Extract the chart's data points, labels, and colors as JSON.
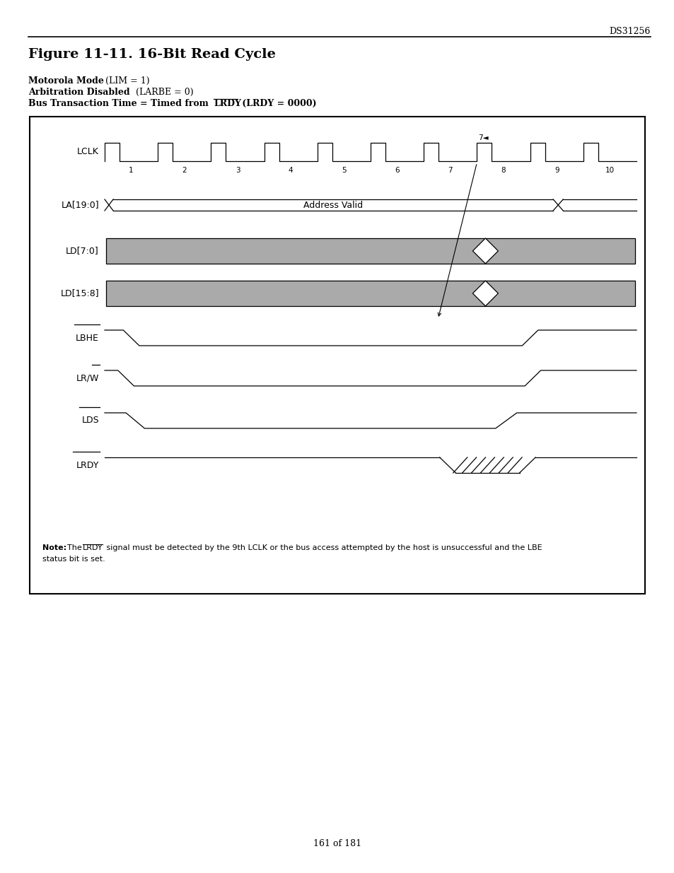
{
  "title": "Figure 11-11. 16-Bit Read Cycle",
  "header_label": "DS31256",
  "page_number": "161 of 181",
  "gray_fill": "#aaaaaa",
  "line_color": "#000000",
  "fig_width": 9.54,
  "fig_height": 12.35,
  "dpi": 100
}
